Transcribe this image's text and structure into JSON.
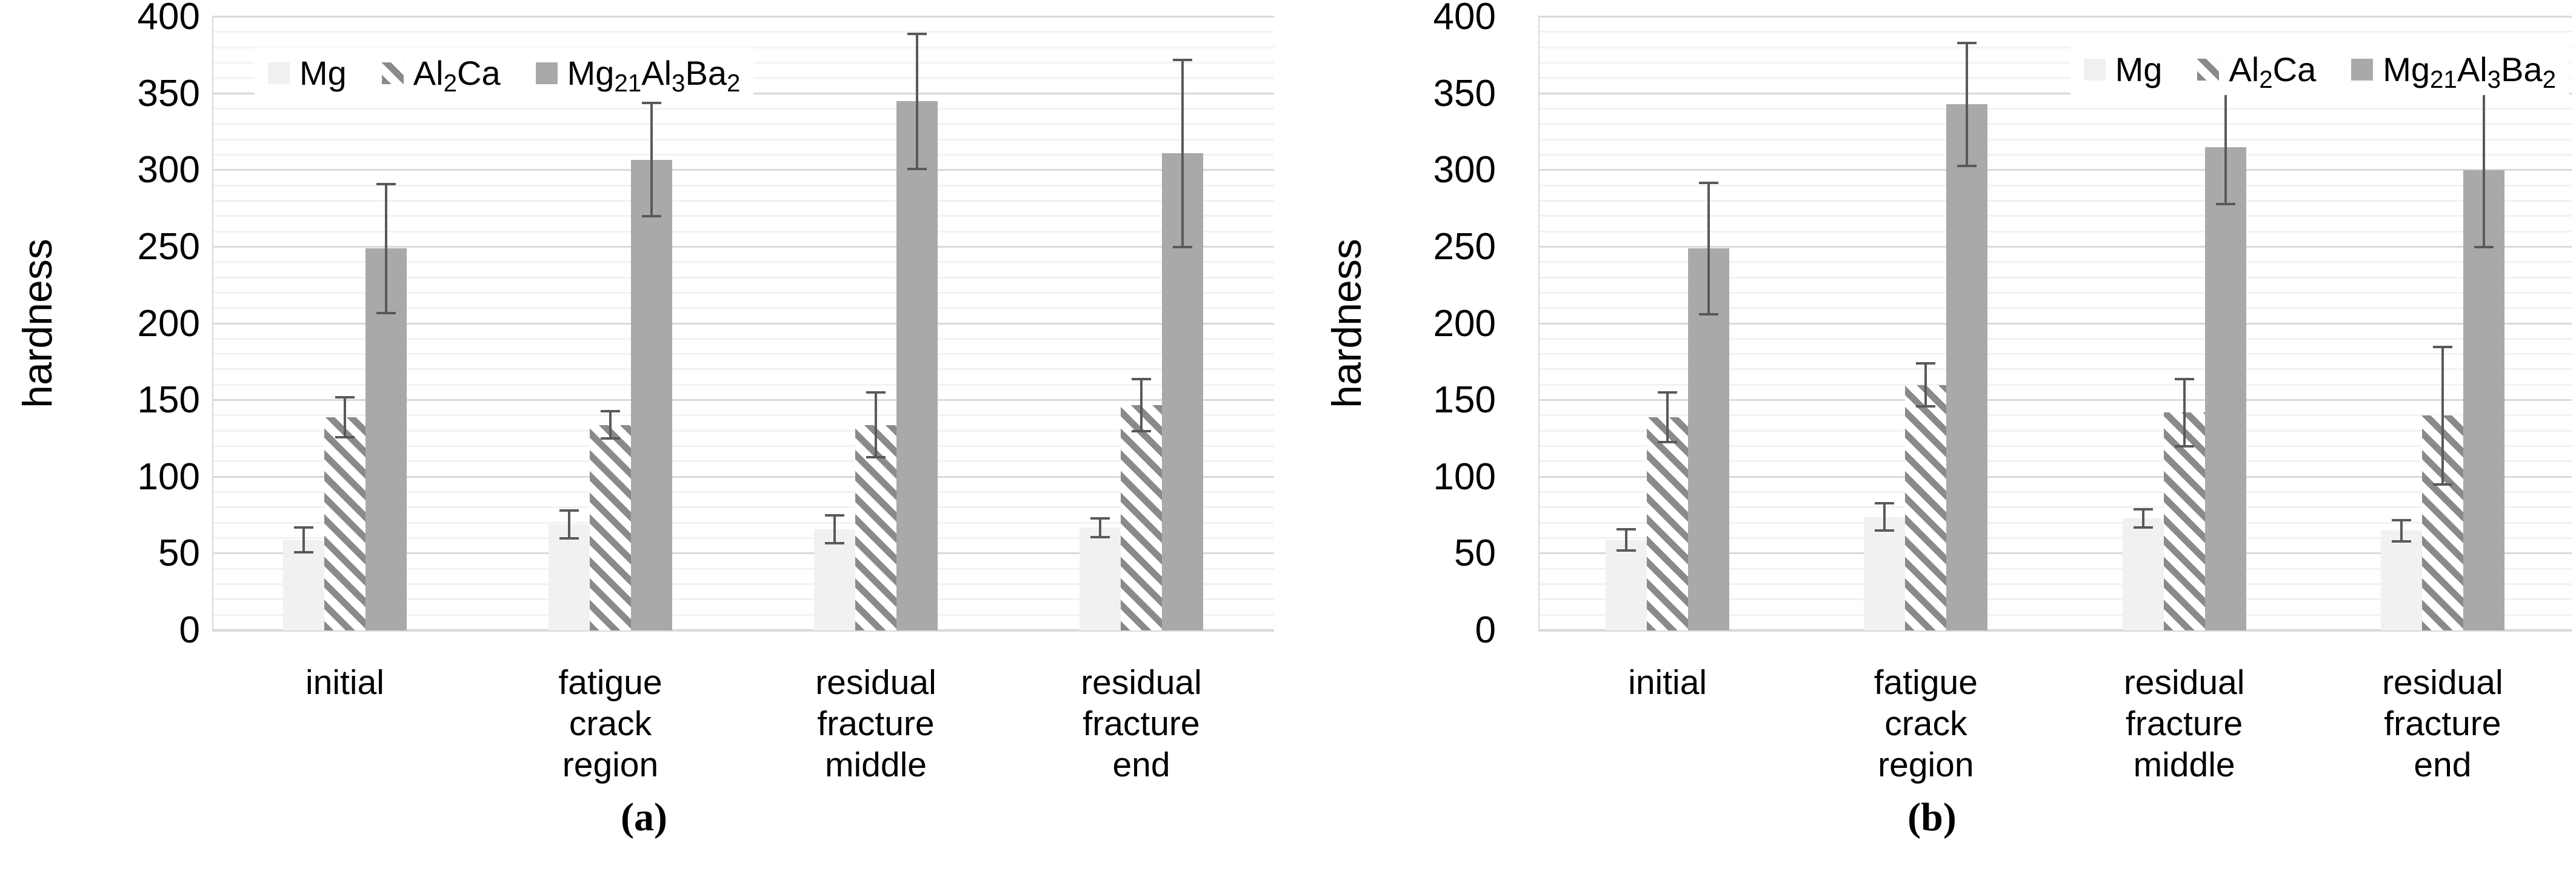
{
  "figure": {
    "background": "#ffffff",
    "panel_captions": [
      "(a)",
      "(b)"
    ]
  },
  "colors": {
    "grid_minor": "#f2f2f2",
    "grid_major": "#d9d9d9",
    "axis_line": "#d9d9d9",
    "error_bar": "#595959",
    "text": "#000000",
    "background": "#ffffff"
  },
  "chart_data": [
    {
      "type": "bar",
      "panel": "a",
      "caption": "(a)",
      "title": "",
      "xlabel": "",
      "ylabel": "hardness",
      "ylim": [
        0,
        400
      ],
      "yticks": [
        0,
        50,
        100,
        150,
        200,
        250,
        300,
        350,
        400
      ],
      "minor_grid_step": 10,
      "grid": true,
      "legend_position": "top-left",
      "categories": [
        [
          "initial"
        ],
        [
          "fatigue",
          "crack",
          "region"
        ],
        [
          "residual",
          "fracture",
          "middle"
        ],
        [
          "residual",
          "fracture",
          "end"
        ]
      ],
      "series": [
        {
          "name": "Mg",
          "label_parts": [
            {
              "t": "Mg",
              "sub": false
            }
          ],
          "pattern": "solid",
          "fill": "#f1f1f1",
          "values": [
            59,
            69,
            66,
            67
          ],
          "errors": [
            8,
            9,
            9,
            6
          ]
        },
        {
          "name": "Al2Ca",
          "label_parts": [
            {
              "t": "Al",
              "sub": false
            },
            {
              "t": "2",
              "sub": true
            },
            {
              "t": "Ca",
              "sub": false
            }
          ],
          "pattern": "hatch",
          "fill": "#ffffff",
          "hatch_color": "#8a8a8a",
          "values": [
            139,
            134,
            134,
            147
          ],
          "errors": [
            13,
            9,
            21,
            17
          ]
        },
        {
          "name": "Mg21Al3Ba2",
          "label_parts": [
            {
              "t": "Mg",
              "sub": false
            },
            {
              "t": "21",
              "sub": true
            },
            {
              "t": "Al",
              "sub": false
            },
            {
              "t": "3",
              "sub": true
            },
            {
              "t": "Ba",
              "sub": false
            },
            {
              "t": "2",
              "sub": true
            }
          ],
          "pattern": "solid",
          "fill": "#a9a9a9",
          "values": [
            249,
            307,
            345,
            311
          ],
          "errors": [
            42,
            37,
            44,
            61
          ]
        }
      ]
    },
    {
      "type": "bar",
      "panel": "b",
      "caption": "(b)",
      "title": "",
      "xlabel": "",
      "ylabel": "hardness",
      "ylim": [
        0,
        400
      ],
      "yticks": [
        0,
        50,
        100,
        150,
        200,
        250,
        300,
        350,
        400
      ],
      "minor_grid_step": 10,
      "grid": true,
      "legend_position": "top-right",
      "categories": [
        [
          "initial"
        ],
        [
          "fatigue",
          "crack",
          "region"
        ],
        [
          "residual",
          "fracture",
          "middle"
        ],
        [
          "residual",
          "fracture",
          "end"
        ]
      ],
      "series": [
        {
          "name": "Mg",
          "label_parts": [
            {
              "t": "Mg",
              "sub": false
            }
          ],
          "pattern": "solid",
          "fill": "#f1f1f1",
          "values": [
            59,
            74,
            73,
            65
          ],
          "errors": [
            7,
            9,
            6,
            7
          ]
        },
        {
          "name": "Al2Ca",
          "label_parts": [
            {
              "t": "Al",
              "sub": false
            },
            {
              "t": "2",
              "sub": true
            },
            {
              "t": "Ca",
              "sub": false
            }
          ],
          "pattern": "hatch",
          "fill": "#ffffff",
          "hatch_color": "#8a8a8a",
          "values": [
            139,
            160,
            142,
            140
          ],
          "errors": [
            16,
            14,
            22,
            45
          ]
        },
        {
          "name": "Mg21Al3Ba2",
          "label_parts": [
            {
              "t": "Mg",
              "sub": false
            },
            {
              "t": "21",
              "sub": true
            },
            {
              "t": "Al",
              "sub": false
            },
            {
              "t": "3",
              "sub": true
            },
            {
              "t": "Ba",
              "sub": false
            },
            {
              "t": "2",
              "sub": true
            }
          ],
          "pattern": "solid",
          "fill": "#a9a9a9",
          "values": [
            249,
            343,
            315,
            300
          ],
          "errors": [
            43,
            40,
            37,
            50
          ]
        }
      ]
    }
  ]
}
